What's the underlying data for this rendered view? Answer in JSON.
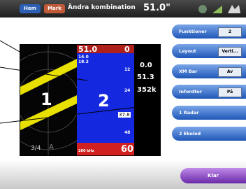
{
  "header": {
    "home": "Hem",
    "mark": "Mark",
    "title": "Ändra kombination",
    "depth": "51.0\""
  },
  "panes": {
    "radar": {
      "number": "1",
      "range": "3/4",
      "mode": "A"
    },
    "sonar": {
      "depth": "51.0",
      "top": "0",
      "depth_a": "14.0",
      "depth_b": "18.2",
      "scale_12": "12",
      "number": "2",
      "scale_24": "24",
      "marker": "37.8",
      "scale_48": "48",
      "frequency": "200 kHz",
      "bottom": "60"
    },
    "data": {
      "speed": "0.0",
      "depth": "51.3",
      "temp": "352k"
    }
  },
  "menu": [
    {
      "label": "Funktioner",
      "value": "2"
    },
    {
      "label": "Layout",
      "value": "Verti..."
    },
    {
      "label": "XM Bar",
      "value": "Av"
    },
    {
      "label": "Infordtor",
      "value": "På"
    },
    {
      "label": "1 Radar"
    },
    {
      "label": "2 Ekolod"
    }
  ],
  "done": "Klar"
}
